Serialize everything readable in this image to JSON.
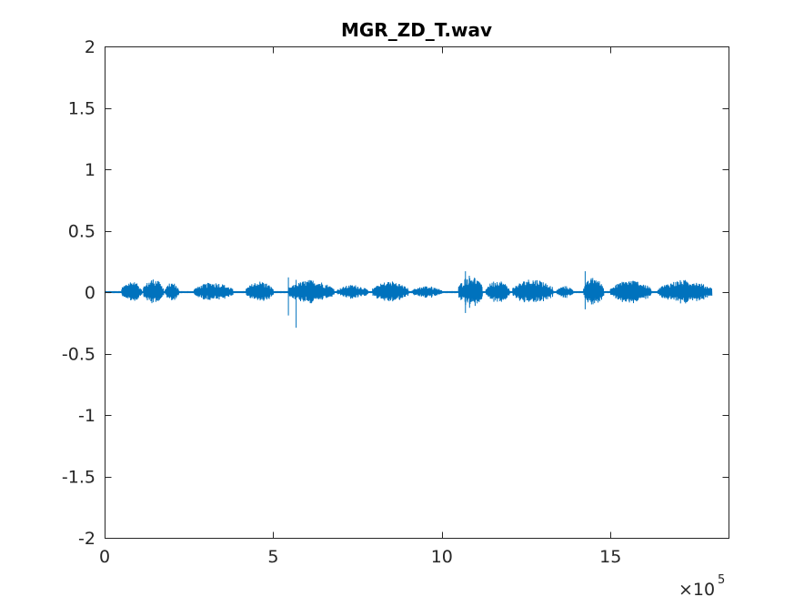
{
  "window": {
    "background": "#ffffff"
  },
  "chart_data": {
    "type": "line",
    "title": "MGR_ZD_T.wav",
    "xlabel": "",
    "ylabel": "",
    "xlim": [
      0,
      1850000
    ],
    "ylim": [
      -2,
      2
    ],
    "x_ticks": [
      0,
      500000,
      1000000,
      1500000
    ],
    "x_tick_labels": [
      "0",
      "5",
      "10",
      "15"
    ],
    "x_exponent_label": "×10",
    "x_exponent_power": "5",
    "y_ticks": [
      2,
      1.5,
      1,
      0.5,
      0,
      -0.5,
      -1,
      -1.5,
      -2
    ],
    "y_tick_labels": [
      "2",
      "1.5",
      "1",
      "0.5",
      "0",
      "-0.5",
      "-1",
      "-1.5",
      "-2"
    ],
    "grid": false,
    "box": true,
    "series_color": "#0072bd",
    "series": [
      {
        "name": "",
        "sample_count": 1800000,
        "bursts": [
          {
            "start": 50000,
            "end": 110000,
            "amp": 0.09
          },
          {
            "start": 115000,
            "end": 175000,
            "amp": 0.11
          },
          {
            "start": 180000,
            "end": 220000,
            "amp": 0.08
          },
          {
            "start": 265000,
            "end": 380000,
            "amp": 0.08
          },
          {
            "start": 420000,
            "end": 500000,
            "amp": 0.09
          },
          {
            "start": 545000,
            "end": 680000,
            "amp": 0.1
          },
          {
            "start": 690000,
            "end": 780000,
            "amp": 0.06
          },
          {
            "start": 795000,
            "end": 900000,
            "amp": 0.09
          },
          {
            "start": 910000,
            "end": 1000000,
            "amp": 0.05
          },
          {
            "start": 1050000,
            "end": 1120000,
            "amp": 0.14
          },
          {
            "start": 1130000,
            "end": 1200000,
            "amp": 0.1
          },
          {
            "start": 1210000,
            "end": 1330000,
            "amp": 0.11
          },
          {
            "start": 1340000,
            "end": 1390000,
            "amp": 0.05
          },
          {
            "start": 1420000,
            "end": 1480000,
            "amp": 0.12
          },
          {
            "start": 1500000,
            "end": 1620000,
            "amp": 0.1
          },
          {
            "start": 1640000,
            "end": 1800000,
            "amp": 0.1
          }
        ],
        "spikes": [
          {
            "x": 545000,
            "min": -0.19,
            "max": 0.12
          },
          {
            "x": 568000,
            "min": -0.29,
            "max": 0.1
          },
          {
            "x": 1070000,
            "min": -0.17,
            "max": 0.17
          },
          {
            "x": 1425000,
            "min": -0.14,
            "max": 0.17
          }
        ]
      }
    ]
  }
}
